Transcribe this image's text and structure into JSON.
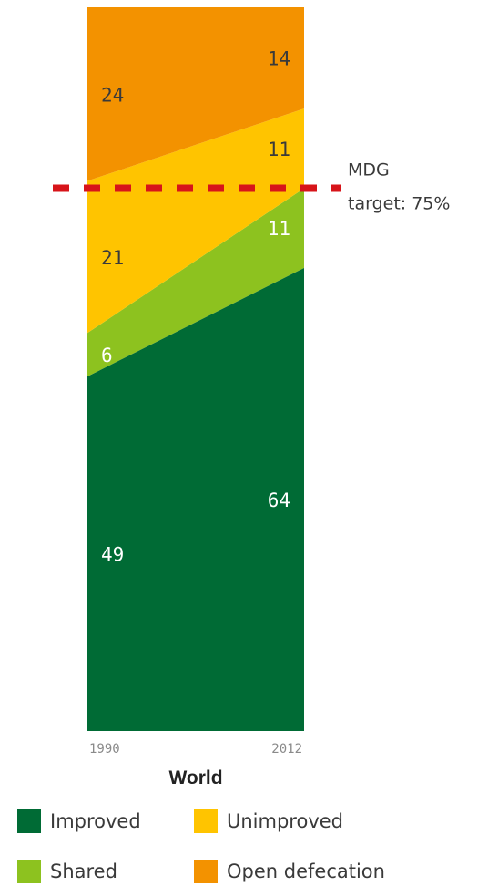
{
  "chart_data": {
    "type": "area",
    "title": "World",
    "x": [
      "1990",
      "2012"
    ],
    "ylim": [
      0,
      100
    ],
    "stacked": true,
    "series": [
      {
        "name": "Improved",
        "values": [
          49,
          64
        ],
        "color": "#006b35",
        "label_color": "#ffffff"
      },
      {
        "name": "Shared",
        "values": [
          6,
          11
        ],
        "color": "#8dc21f",
        "label_color": "#ffffff"
      },
      {
        "name": "Unimproved",
        "values": [
          21,
          11
        ],
        "color": "#ffc400",
        "label_color": "#3a3a3a"
      },
      {
        "name": "Open defecation",
        "values": [
          24,
          14
        ],
        "color": "#f39200",
        "label_color": "#3a3a3a"
      }
    ],
    "target": {
      "value": 75,
      "label_line1": "MDG",
      "label_line2": "target: 75%",
      "color": "#d7141a",
      "style": "dashed"
    },
    "legend": {
      "position": "bottom",
      "columns": 2
    }
  }
}
